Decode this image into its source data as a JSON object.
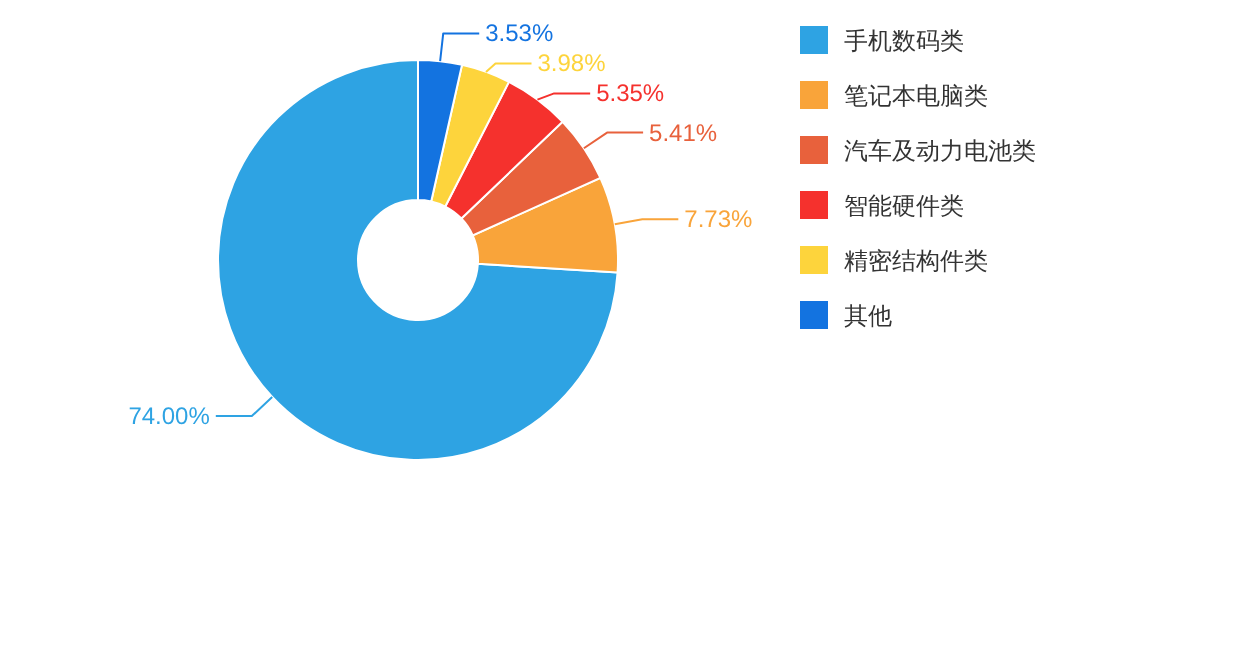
{
  "chart_data": {
    "type": "donut",
    "categories": [
      "手机数码类",
      "笔记本电脑类",
      "汽车及动力电池类",
      "智能硬件类",
      "精密结构件类",
      "其他"
    ],
    "values": [
      74.0,
      7.73,
      5.41,
      5.35,
      3.98,
      3.53
    ],
    "colors": [
      "#2ea3e3",
      "#f9a43a",
      "#e8613c",
      "#f5312d",
      "#fdd43c",
      "#1373e0"
    ],
    "value_labels": [
      "74.00%",
      "7.73%",
      "5.41%",
      "5.35%",
      "3.98%",
      "3.53%"
    ],
    "legend": "right"
  }
}
